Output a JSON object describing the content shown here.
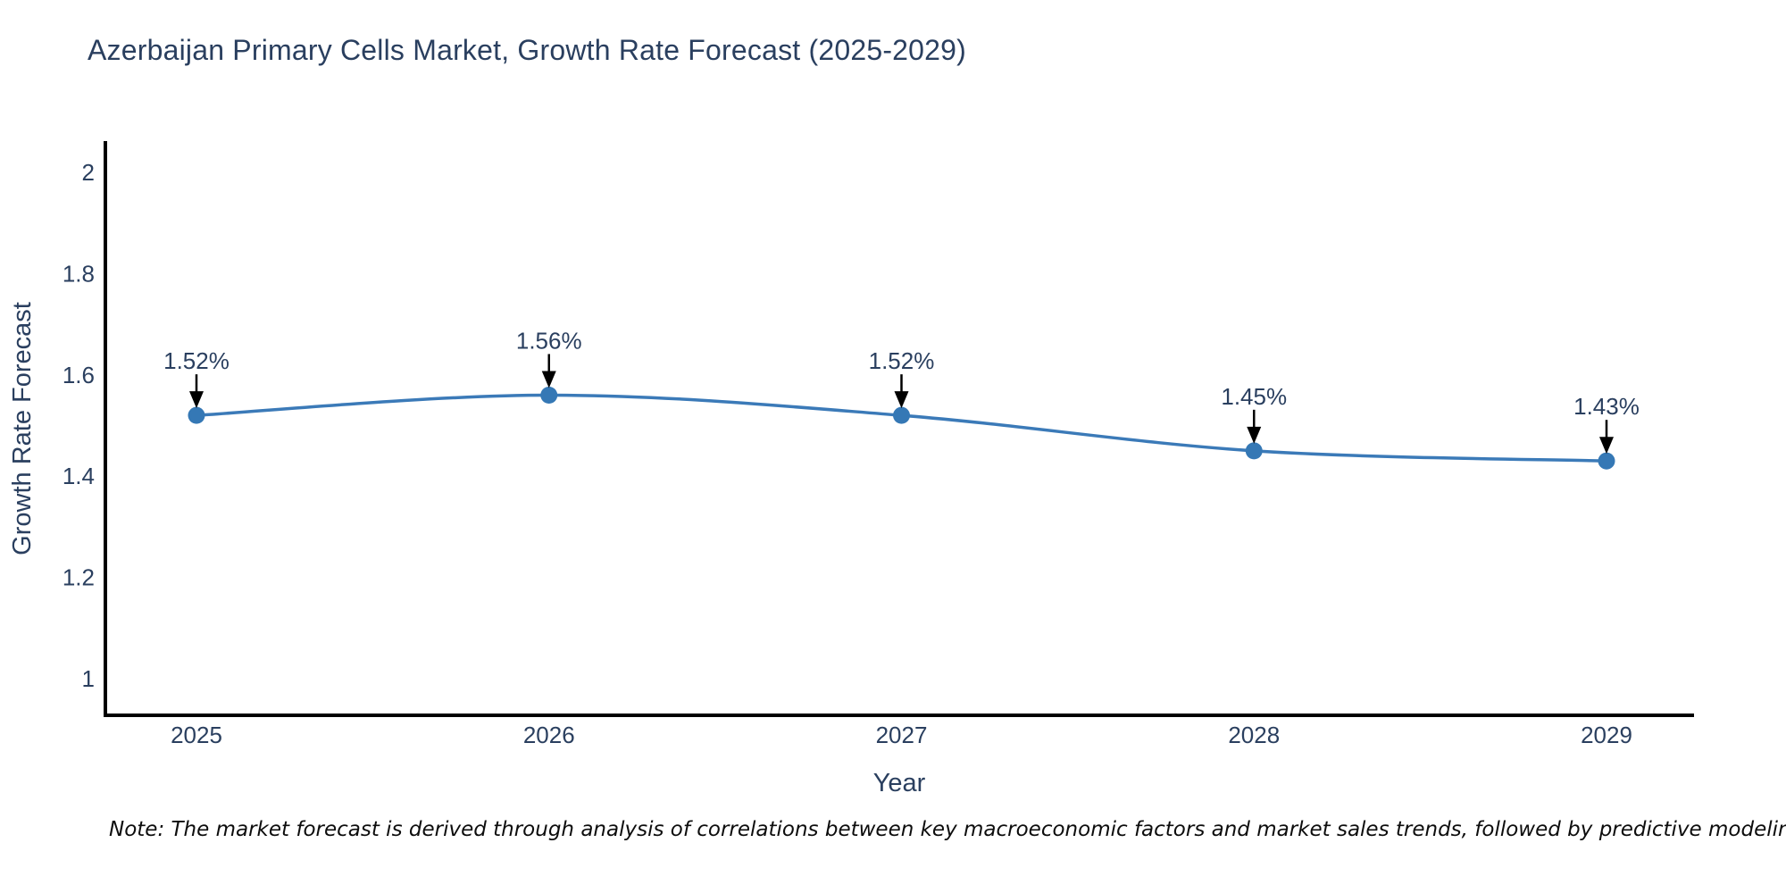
{
  "chart_data": {
    "type": "line",
    "title": "Azerbaijan Primary Cells Market, Growth Rate Forecast (2025-2029)",
    "xlabel": "Year",
    "ylabel": "Growth Rate Forecast",
    "x": [
      2025,
      2026,
      2027,
      2028,
      2029
    ],
    "series": [
      {
        "name": "Growth Rate Forecast",
        "values": [
          1.52,
          1.56,
          1.52,
          1.45,
          1.43
        ]
      }
    ],
    "point_labels": [
      "1.52%",
      "1.56%",
      "1.52%",
      "1.45%",
      "1.43%"
    ],
    "yticks": [
      1,
      1.2,
      1.4,
      1.6,
      1.8,
      2
    ],
    "ylim": [
      0.93,
      2.06
    ],
    "xlim": [
      2024.74,
      2029.25
    ],
    "grid": false,
    "legend_position": "none",
    "line_shape": "spline",
    "colors": {
      "line": "#3b7ab8",
      "marker": "#3578b5",
      "axis": "#000000",
      "text": "#2a3f5f",
      "annotation_text": "#2a3f5f",
      "annotation_arrow": "#000000",
      "background": "#ffffff"
    }
  },
  "footnote": "Note: The market forecast is derived through analysis of correlations between key macroeconomic factors and market sales trends, followed by predictive modeling to project future sales"
}
